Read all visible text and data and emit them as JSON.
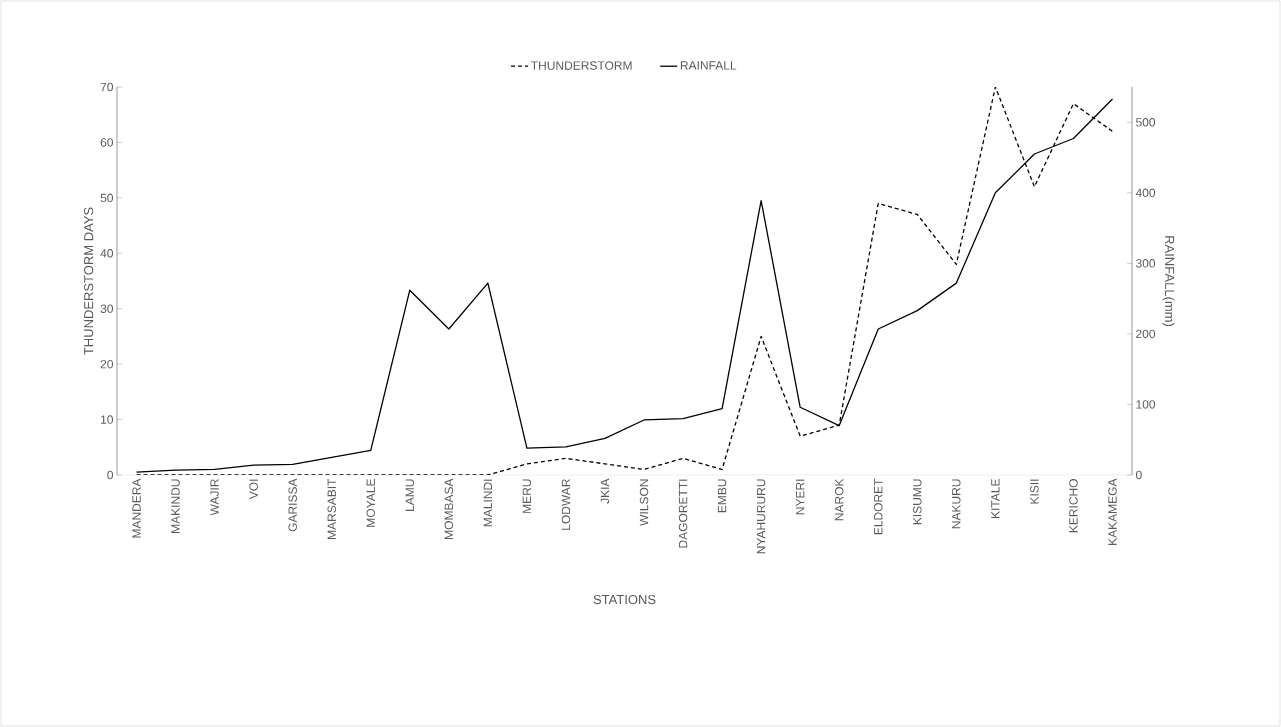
{
  "chart_data": {
    "type": "line",
    "xlabel": "STATIONS",
    "ylabel": "THUNDERSTORM DAYS",
    "y2label": "RAINFALL(mm)",
    "categories": [
      "MANDERA",
      "MAKINDU",
      "WAJIR",
      "VOI",
      "GARISSA",
      "MARSABIT",
      "MOYALE",
      "LAMU",
      "MOMBASA",
      "MALINDI",
      "MERU",
      "LODWAR",
      "JKIA",
      "WILSON",
      "DAGORETTI",
      "EMBU",
      "NYAHURURU",
      "NYERI",
      "NAROK",
      "ELDORET",
      "KISUMU",
      "NAKURU",
      "KITALE",
      "KISII",
      "KERICHO",
      "KAKAMEGA"
    ],
    "series": [
      {
        "name": "THUNDERSTORM",
        "color": "#000000",
        "line_style": "dashed",
        "values": [
          0,
          0,
          0,
          0,
          0,
          0,
          0,
          0,
          0,
          0,
          2,
          3,
          2,
          1,
          3,
          1,
          25,
          7,
          9,
          49,
          47,
          38,
          70,
          52,
          67,
          62
        ]
      },
      {
        "name": "RAINFALL",
        "color": "#000000",
        "line_style": "solid",
        "axis": "y2",
        "values": [
          4,
          7,
          8,
          14,
          15,
          25,
          35,
          262,
          207,
          272,
          38,
          40,
          52,
          78,
          80,
          94,
          389,
          96,
          70,
          207,
          233,
          272,
          400,
          455,
          477,
          533
        ]
      }
    ],
    "ylim": [
      0,
      70
    ],
    "yticks": [
      0,
      10,
      20,
      30,
      40,
      50,
      60,
      70
    ],
    "y2lim": [
      0,
      550
    ],
    "y2ticks": [
      0,
      100,
      200,
      300,
      400,
      500
    ],
    "legend": "top",
    "grid": false,
    "marker": "none"
  }
}
